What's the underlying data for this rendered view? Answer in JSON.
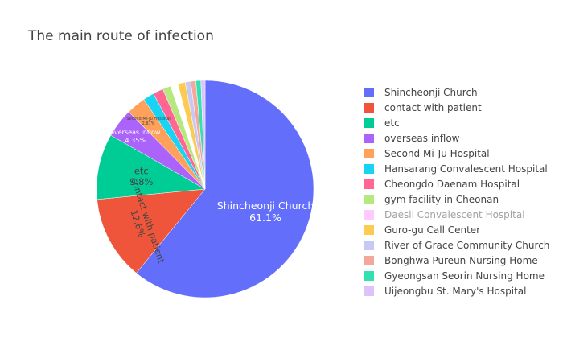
{
  "chart_data": {
    "type": "pie",
    "title": "The main route of infection",
    "legend_position": "right",
    "slices": [
      {
        "label": "Shincheonji Church",
        "value": 61.1,
        "color": "#636efa",
        "text_color": "#ffffff"
      },
      {
        "label": "contact with patient",
        "value": 12.6,
        "color": "#EF553B",
        "text_color": "#444444"
      },
      {
        "label": "etc",
        "value": 9.8,
        "color": "#00cc96",
        "text_color": "#444444"
      },
      {
        "label": "overseas inflow",
        "value": 4.35,
        "color": "#ab63fa",
        "text_color": "#ffffff"
      },
      {
        "label": "Second Mi-Ju Hospital",
        "value": 2.87,
        "color": "#FFA15A",
        "text_color": "#444444"
      },
      {
        "label": "Hansarang Convalescent Hospital",
        "value": 1.65,
        "color": "#19d3f3",
        "text_color": "#444444"
      },
      {
        "label": "Cheongdo Daenam Hospital",
        "value": 1.55,
        "color": "#FF6692",
        "text_color": "#444444"
      },
      {
        "label": "gym facility in Cheonan",
        "value": 1.21,
        "color": "#B6E880",
        "text_color": "#444444"
      },
      {
        "label": "Daesil Convalescent Hospital",
        "value": 1.12,
        "color": "#FF97FF",
        "text_color": "#444444",
        "hidden": true
      },
      {
        "label": "Guro-gu Call Center",
        "value": 1.1,
        "color": "#FECB52",
        "text_color": "#444444"
      },
      {
        "label": "River of Grace Community Church",
        "value": 0.82,
        "color": "#c6c9f5",
        "text_color": "#444444"
      },
      {
        "label": "Bonghwa Pureun Nursing Home",
        "value": 0.76,
        "color": "#f4a79b",
        "text_color": "#444444"
      },
      {
        "label": "Gyeongsan Seorin Nursing Home",
        "value": 0.75,
        "color": "#33e0b0",
        "text_color": "#444444"
      },
      {
        "label": "Uijeongbu St. Mary's Hospital",
        "value": 0.62,
        "color": "#dcc3fb",
        "text_color": "#444444"
      }
    ],
    "visible_slice_labels": [
      {
        "index": 0,
        "name": "Shincheonji Church",
        "percent": "61.1%"
      },
      {
        "index": 1,
        "name": "contact with patient",
        "percent": "12.6%"
      },
      {
        "index": 2,
        "name": "etc",
        "percent": "9.8%"
      },
      {
        "index": 3,
        "name": "overseas inflow",
        "percent": "4.35%"
      },
      {
        "index": 4,
        "name": "Second Mi-Ju Hospital",
        "percent": "2.87%"
      }
    ]
  }
}
